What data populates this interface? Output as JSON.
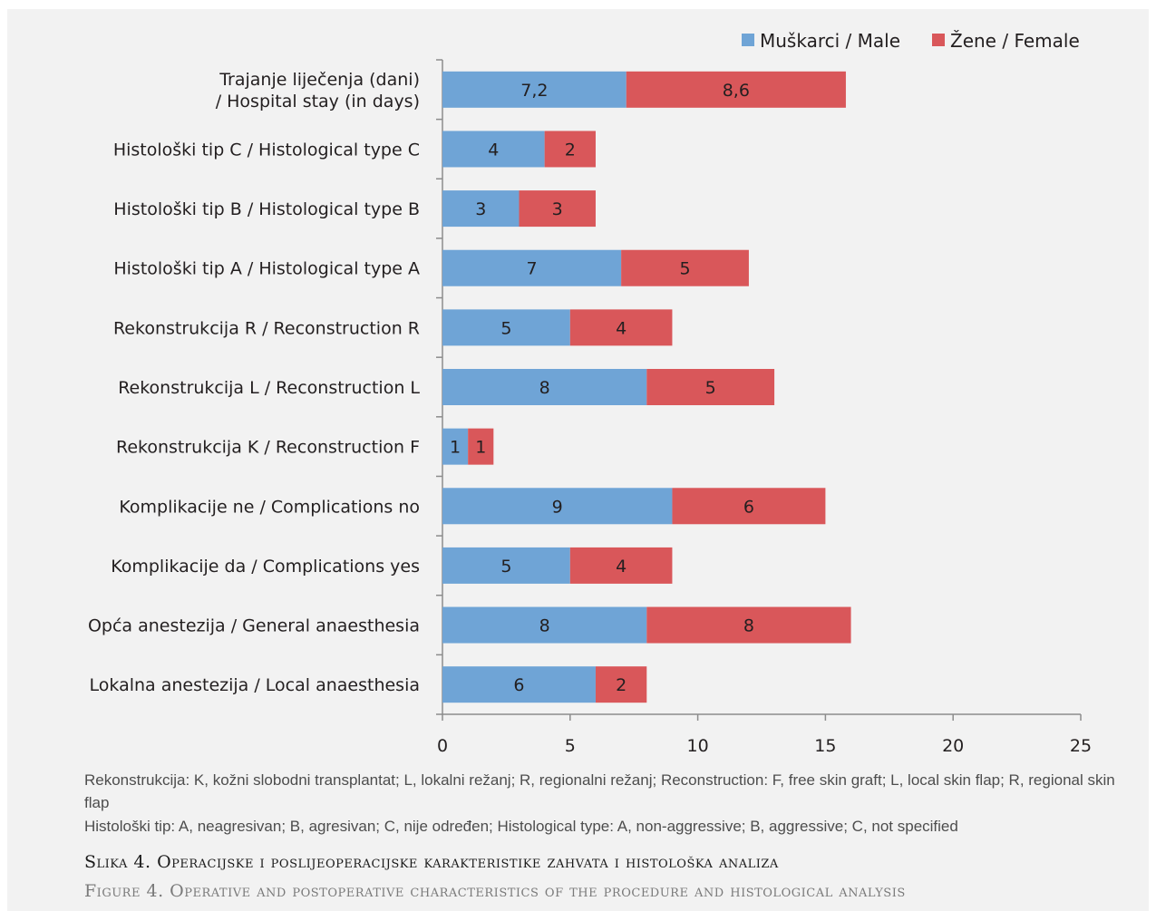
{
  "chart_data": {
    "type": "bar",
    "orientation": "horizontal",
    "stacked": true,
    "categories": [
      [
        "Trajanje liječenja (dani) ",
        "/ Hospital stay (in days)"
      ],
      [
        "Histološki tip C / Histological type C"
      ],
      [
        "Histološki tip B / Histological type B"
      ],
      [
        "Histološki tip A / Histological type A"
      ],
      [
        "Rekonstrukcija R / Reconstruction R"
      ],
      [
        "Rekonstrukcija L / Reconstruction L"
      ],
      [
        "Rekonstrukcija K / Reconstruction F"
      ],
      [
        "Komplikacije ne / Complications no"
      ],
      [
        "Komplikacije da / Complications yes"
      ],
      [
        "Opća anestezija / General anaesthesia"
      ],
      [
        "Lokalna anestezija / Local anaesthesia"
      ]
    ],
    "series": [
      {
        "name": "Muškarci / Male",
        "color": "#6fa4d6",
        "values": [
          7.2,
          4,
          3,
          7,
          5,
          8,
          1,
          9,
          5,
          8,
          6
        ],
        "labels": [
          "7,2",
          "4",
          "3",
          "7",
          "5",
          "8",
          "1",
          "9",
          "5",
          "8",
          "6"
        ]
      },
      {
        "name": "Žene / Female",
        "color": "#d9575a",
        "values": [
          8.6,
          2,
          3,
          5,
          4,
          5,
          1,
          6,
          4,
          8,
          2
        ],
        "labels": [
          "8,6",
          "2",
          "3",
          "5",
          "4",
          "5",
          "1",
          "6",
          "4",
          "8",
          "2"
        ]
      }
    ],
    "xlim": [
      0,
      25
    ],
    "xticks": [
      0,
      5,
      10,
      15,
      20,
      25
    ],
    "grid": false,
    "legend_position": "top-right"
  },
  "notes": {
    "line1": "Rekonstrukcija: K, kožni slobodni transplantat; L, lokalni režanj; R, regionalni režanj; Reconstruction: F, free skin graft; L, local skin flap; R, regional skin flap",
    "line2": "Histološki tip: A, neagresivan; B, agresivan; C, nije određen; Histological type: A, non-aggressive; B, aggressive; C, not specified"
  },
  "caption": {
    "hr": "Slika 4. Operacijske i poslijeoperacijske karakteristike zahvata i histološka analiza",
    "en": "Figure 4. Operative and postoperative characteristics of the procedure and histological analysis"
  }
}
